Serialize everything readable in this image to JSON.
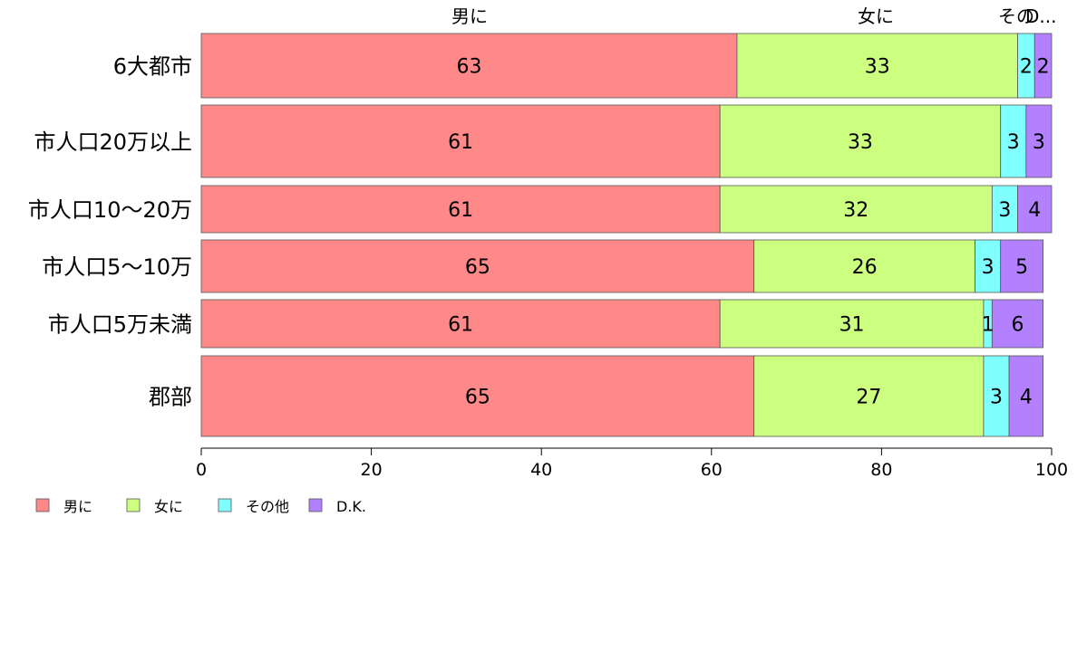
{
  "chart_data": {
    "type": "bar",
    "orientation": "horizontal",
    "stacked": true,
    "title": "",
    "xlabel": "",
    "ylabel": "",
    "xlim": [
      0,
      100
    ],
    "xticks": [
      0,
      20,
      40,
      60,
      80,
      100
    ],
    "grid": false,
    "legend_position": "bottom-left",
    "categories": [
      "6大都市",
      "市人口20万以上",
      "市人口10〜20万",
      "市人口5〜10万",
      "市人口5万未満",
      "郡部"
    ],
    "series": [
      {
        "name": "男に",
        "color": "#ff8888",
        "values": [
          63,
          61,
          61,
          65,
          61,
          65
        ],
        "top_label": "男に"
      },
      {
        "name": "女に",
        "color": "#ccff80",
        "values": [
          33,
          33,
          32,
          26,
          31,
          27
        ],
        "top_label": "女に"
      },
      {
        "name": "その他",
        "color": "#80ffff",
        "values": [
          2,
          3,
          3,
          3,
          1,
          3
        ],
        "top_label": "その"
      },
      {
        "name": "D.K.",
        "color": "#b380ff",
        "values": [
          2,
          3,
          4,
          5,
          6,
          4
        ],
        "top_label": "D..."
      }
    ],
    "legend": [
      "男に",
      "女に",
      "その他",
      "D.K."
    ]
  }
}
